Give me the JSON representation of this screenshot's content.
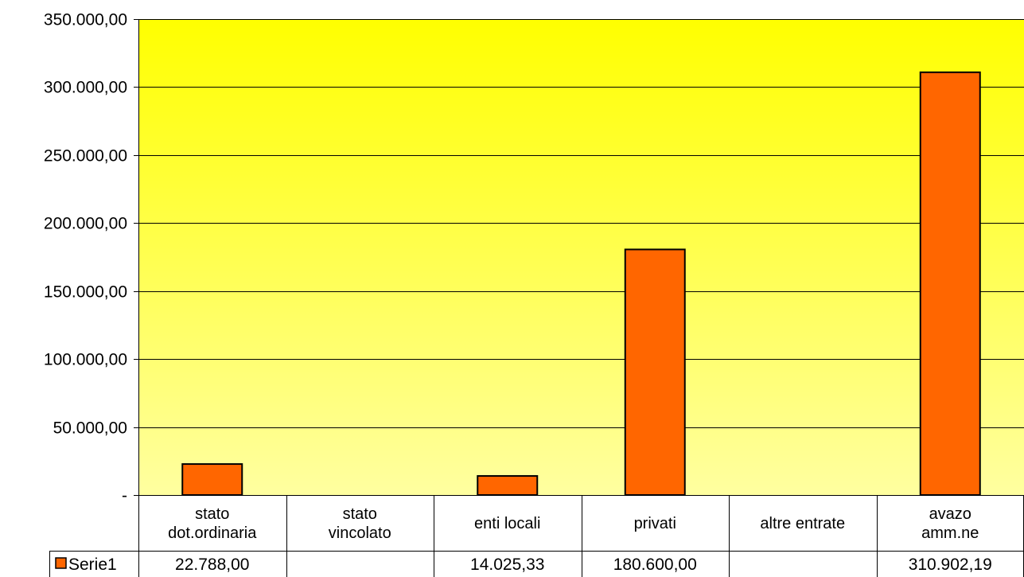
{
  "chart_data": {
    "type": "bar",
    "categories": [
      [
        "stato",
        "dot.ordinaria"
      ],
      [
        "stato",
        "vincolato"
      ],
      [
        "enti locali"
      ],
      [
        "privati"
      ],
      [
        "altre entrate"
      ],
      [
        "avazo",
        "amm.ne"
      ]
    ],
    "series": [
      {
        "name": "Serie1",
        "values": [
          22788.0,
          null,
          14025.33,
          180600.0,
          null,
          310902.19
        ],
        "labels": [
          "22.788,00",
          "",
          "14.025,33",
          "180.600,00",
          "",
          "310.902,19"
        ],
        "color": "#ff6600"
      }
    ],
    "ylim": [
      0,
      350000
    ],
    "yticks": [
      {
        "value": 0,
        "label": "-"
      },
      {
        "value": 50000,
        "label": "50.000,00"
      },
      {
        "value": 100000,
        "label": "100.000,00"
      },
      {
        "value": 150000,
        "label": "150.000,00"
      },
      {
        "value": 200000,
        "label": "200.000,00"
      },
      {
        "value": 250000,
        "label": "250.000,00"
      },
      {
        "value": 300000,
        "label": "300.000,00"
      },
      {
        "value": 350000,
        "label": "350.000,00"
      }
    ],
    "grid": true,
    "legend": "data-table",
    "plot_background": {
      "top": "#ffff00",
      "bottom": "#ffffa0"
    },
    "title": "",
    "xlabel": "",
    "ylabel": ""
  }
}
